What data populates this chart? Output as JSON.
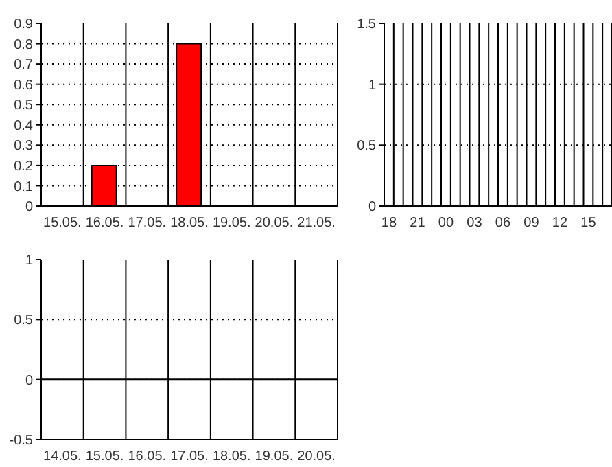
{
  "chart_data": [
    {
      "type": "bar",
      "categories": [
        "15.05.",
        "16.05.",
        "17.05.",
        "18.05.",
        "19.05.",
        "20.05.",
        "21.05."
      ],
      "values": [
        null,
        0.2,
        null,
        0.8,
        null,
        null,
        null
      ],
      "color": "#ff0000",
      "ylim": [
        0,
        0.9
      ],
      "yticks": [
        0,
        0.1,
        0.2,
        0.3,
        0.4,
        0.5,
        0.6,
        0.7,
        0.8,
        0.9
      ],
      "grid": true
    },
    {
      "type": "bar",
      "categories": [
        "18",
        null,
        null,
        "21",
        null,
        null,
        "00",
        null,
        null,
        "03",
        null,
        null,
        "06",
        null,
        null,
        "09",
        null,
        null,
        "12",
        null,
        null,
        "15",
        null,
        null
      ],
      "values": [
        null,
        null,
        null,
        null,
        null,
        null,
        null,
        null,
        null,
        null,
        null,
        null,
        null,
        null,
        null,
        null,
        null,
        null,
        null,
        null,
        null,
        null,
        null,
        null
      ],
      "color": "#ff0000",
      "ylim": [
        0,
        1.5
      ],
      "yticks": [
        0,
        0.5,
        1,
        1.5
      ],
      "grid": true
    },
    {
      "type": "bar",
      "categories": [
        "14.05.",
        "15.05.",
        "16.05.",
        "17.05.",
        "18.05.",
        "19.05.",
        "20.05."
      ],
      "values": [
        null,
        null,
        null,
        null,
        null,
        null,
        null
      ],
      "color": "#ff0000",
      "ylim": [
        -0.5,
        1
      ],
      "yticks": [
        -0.5,
        0,
        0.5,
        1
      ],
      "grid": true,
      "ref_lines": [
        {
          "axis": "y",
          "value": 0
        }
      ]
    }
  ]
}
